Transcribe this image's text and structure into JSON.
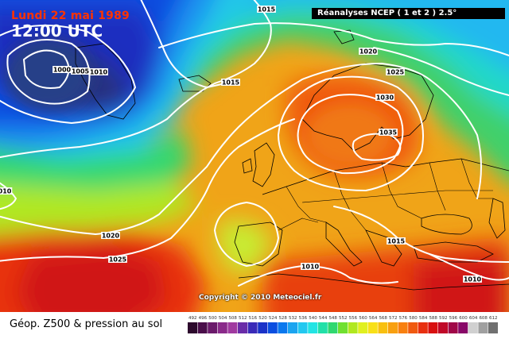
{
  "header": {
    "date": "Lundi 22 mai 1989",
    "time": "12:00 UTC",
    "source": "Réanalyses NCEP ( 1 et 2 ) 2.5°"
  },
  "copyright": "Copyright © 2010 Meteociel.fr",
  "footer": {
    "title": "Géop. Z500 & pression au sol"
  },
  "legend": {
    "values": [
      "492",
      "496",
      "500",
      "504",
      "508",
      "512",
      "516",
      "520",
      "524",
      "528",
      "532",
      "536",
      "540",
      "544",
      "548",
      "552",
      "556",
      "560",
      "564",
      "568",
      "572",
      "576",
      "580",
      "584",
      "588",
      "592",
      "596",
      "600",
      "604",
      "608",
      "612"
    ],
    "colors": [
      "#2d0a2d",
      "#4a0e4a",
      "#6b1a6b",
      "#8a2a8a",
      "#a03aa0",
      "#6a2ca8",
      "#3a2ab8",
      "#1a32c8",
      "#0a4ee0",
      "#0a78ee",
      "#1aa4f0",
      "#22c8f0",
      "#22e4e4",
      "#22e0a8",
      "#30d870",
      "#70e030",
      "#b0e820",
      "#e0f020",
      "#f8e018",
      "#f8c010",
      "#f8a010",
      "#f88010",
      "#f05a10",
      "#e83010",
      "#d81010",
      "#c00828",
      "#a00848",
      "#880868",
      "#d0d0d0",
      "#a0a0a0",
      "#707070"
    ]
  },
  "isobars": [
    {
      "label": "1015",
      "color": "#ffffff"
    },
    {
      "label": "1020",
      "color": "#ffffff"
    },
    {
      "label": "1000",
      "color": "#ffffff"
    },
    {
      "label": "1005",
      "color": "#ffffff"
    },
    {
      "label": "1010",
      "color": "#ffffff"
    },
    {
      "label": "1015",
      "color": "#ffffff"
    },
    {
      "label": "1025",
      "color": "#ffffff"
    },
    {
      "label": "1030",
      "color": "#ffffff"
    },
    {
      "label": "1035",
      "color": "#ffffff"
    },
    {
      "label": "1020",
      "color": "#ffffff"
    },
    {
      "label": "1025",
      "color": "#ffffff"
    },
    {
      "label": "1015",
      "color": "#ffffff"
    },
    {
      "label": "1010",
      "color": "#ffffff"
    },
    {
      "label": "1010",
      "color": "#ffffff"
    },
    {
      "label": "010",
      "color": "#ffffff"
    }
  ]
}
